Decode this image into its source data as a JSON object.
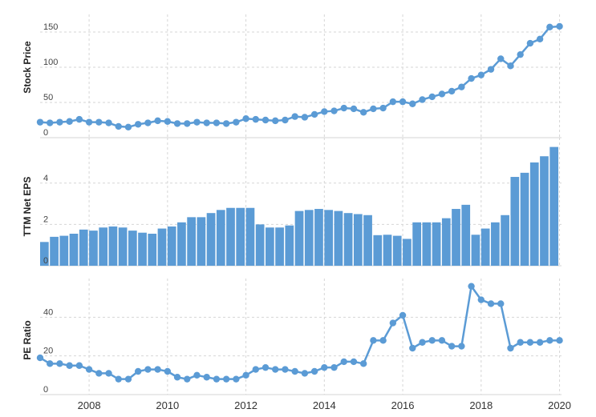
{
  "colors": {
    "series": "#5b9bd5",
    "grid": "#d6d6d6",
    "text": "#333333",
    "tick_text": "#444444"
  },
  "chart_data": [
    {
      "type": "line",
      "ylabel": "Stock Price",
      "ylim": [
        0,
        175
      ],
      "yticks": [
        0,
        50,
        100,
        150
      ],
      "grid": true,
      "series": [
        {
          "x": [
            2006.75,
            2007.0,
            2007.25,
            2007.5,
            2007.75,
            2008.0,
            2008.25,
            2008.5,
            2008.75,
            2009.0,
            2009.25,
            2009.5,
            2009.75,
            2010.0,
            2010.25,
            2010.5,
            2010.75,
            2011.0,
            2011.25,
            2011.5,
            2011.75,
            2012.0,
            2012.25,
            2012.5,
            2012.75,
            2013.0,
            2013.25,
            2013.5,
            2013.75,
            2014.0,
            2014.25,
            2014.5,
            2014.75,
            2015.0,
            2015.25,
            2015.5,
            2015.75,
            2016.0,
            2016.25,
            2016.5,
            2016.75,
            2017.0,
            2017.25,
            2017.5,
            2017.75,
            2018.0,
            2018.25,
            2018.5,
            2018.75,
            2019.0,
            2019.25,
            2019.5,
            2019.75,
            2020.0
          ],
          "values": [
            22,
            21,
            22,
            23,
            26,
            22,
            22,
            21,
            16,
            15,
            19,
            21,
            24,
            23,
            20,
            20,
            22,
            21,
            21,
            20,
            22,
            27,
            26,
            25,
            24,
            25,
            30,
            29,
            33,
            37,
            38,
            42,
            41,
            36,
            41,
            42,
            51,
            51,
            48,
            54,
            58,
            62,
            66,
            72,
            84,
            89,
            97,
            112,
            102,
            118,
            134,
            140,
            157,
            158
          ]
        }
      ]
    },
    {
      "type": "bar",
      "ylabel": "TTM Net EPS",
      "ylim": [
        0,
        6.2
      ],
      "yticks": [
        0,
        2,
        4
      ],
      "grid": true,
      "series": [
        {
          "x": [
            2006.75,
            2007.0,
            2007.25,
            2007.5,
            2007.75,
            2008.0,
            2008.25,
            2008.5,
            2008.75,
            2009.0,
            2009.25,
            2009.5,
            2009.75,
            2010.0,
            2010.25,
            2010.5,
            2010.75,
            2011.0,
            2011.25,
            2011.5,
            2011.75,
            2012.0,
            2012.25,
            2012.5,
            2012.75,
            2013.0,
            2013.25,
            2013.5,
            2013.75,
            2014.0,
            2014.25,
            2014.5,
            2014.75,
            2015.0,
            2015.25,
            2015.5,
            2015.75,
            2016.0,
            2016.25,
            2016.5,
            2016.75,
            2017.0,
            2017.25,
            2017.5,
            2017.75,
            2018.0,
            2018.25,
            2018.5,
            2018.75,
            2019.0,
            2019.25,
            2019.5,
            2019.75
          ],
          "values": [
            1.15,
            1.4,
            1.45,
            1.55,
            1.75,
            1.7,
            1.85,
            1.9,
            1.85,
            1.7,
            1.6,
            1.55,
            1.8,
            1.9,
            2.1,
            2.35,
            2.35,
            2.55,
            2.7,
            2.8,
            2.8,
            2.8,
            2.0,
            1.85,
            1.85,
            1.95,
            2.65,
            2.7,
            2.75,
            2.7,
            2.65,
            2.55,
            2.5,
            2.45,
            1.48,
            1.5,
            1.45,
            1.3,
            2.1,
            2.1,
            2.1,
            2.3,
            2.75,
            2.95,
            1.5,
            1.8,
            2.1,
            2.45,
            4.3,
            4.5,
            5.0,
            5.3,
            5.75
          ]
        }
      ]
    },
    {
      "type": "line",
      "ylabel": "PE Ratio",
      "xlabel": "",
      "ylim": [
        0,
        60
      ],
      "yticks": [
        0,
        20,
        40
      ],
      "xticks": [
        "2008",
        "2010",
        "2012",
        "2014",
        "2016",
        "2018",
        "2020"
      ],
      "grid": true,
      "series": [
        {
          "x": [
            2006.75,
            2007.0,
            2007.25,
            2007.5,
            2007.75,
            2008.0,
            2008.25,
            2008.5,
            2008.75,
            2009.0,
            2009.25,
            2009.5,
            2009.75,
            2010.0,
            2010.25,
            2010.5,
            2010.75,
            2011.0,
            2011.25,
            2011.5,
            2011.75,
            2012.0,
            2012.25,
            2012.5,
            2012.75,
            2013.0,
            2013.25,
            2013.5,
            2013.75,
            2014.0,
            2014.25,
            2014.5,
            2014.75,
            2015.0,
            2015.25,
            2015.5,
            2015.75,
            2016.0,
            2016.25,
            2016.5,
            2016.75,
            2017.0,
            2017.25,
            2017.5,
            2017.75,
            2018.0,
            2018.25,
            2018.5,
            2018.75,
            2019.0,
            2019.25,
            2019.5,
            2019.75,
            2020.0
          ],
          "values": [
            19,
            16,
            16,
            15,
            15,
            13,
            11,
            11,
            8,
            8,
            12,
            13,
            13,
            12,
            9,
            8,
            10,
            9,
            8,
            8,
            8,
            10,
            13,
            14,
            13,
            13,
            12,
            11,
            12,
            14,
            14,
            17,
            17,
            16,
            28,
            28,
            37,
            41,
            24,
            27,
            28,
            28,
            25,
            25,
            56,
            49,
            47,
            47,
            24,
            27,
            27,
            27,
            28,
            28
          ]
        }
      ]
    }
  ]
}
